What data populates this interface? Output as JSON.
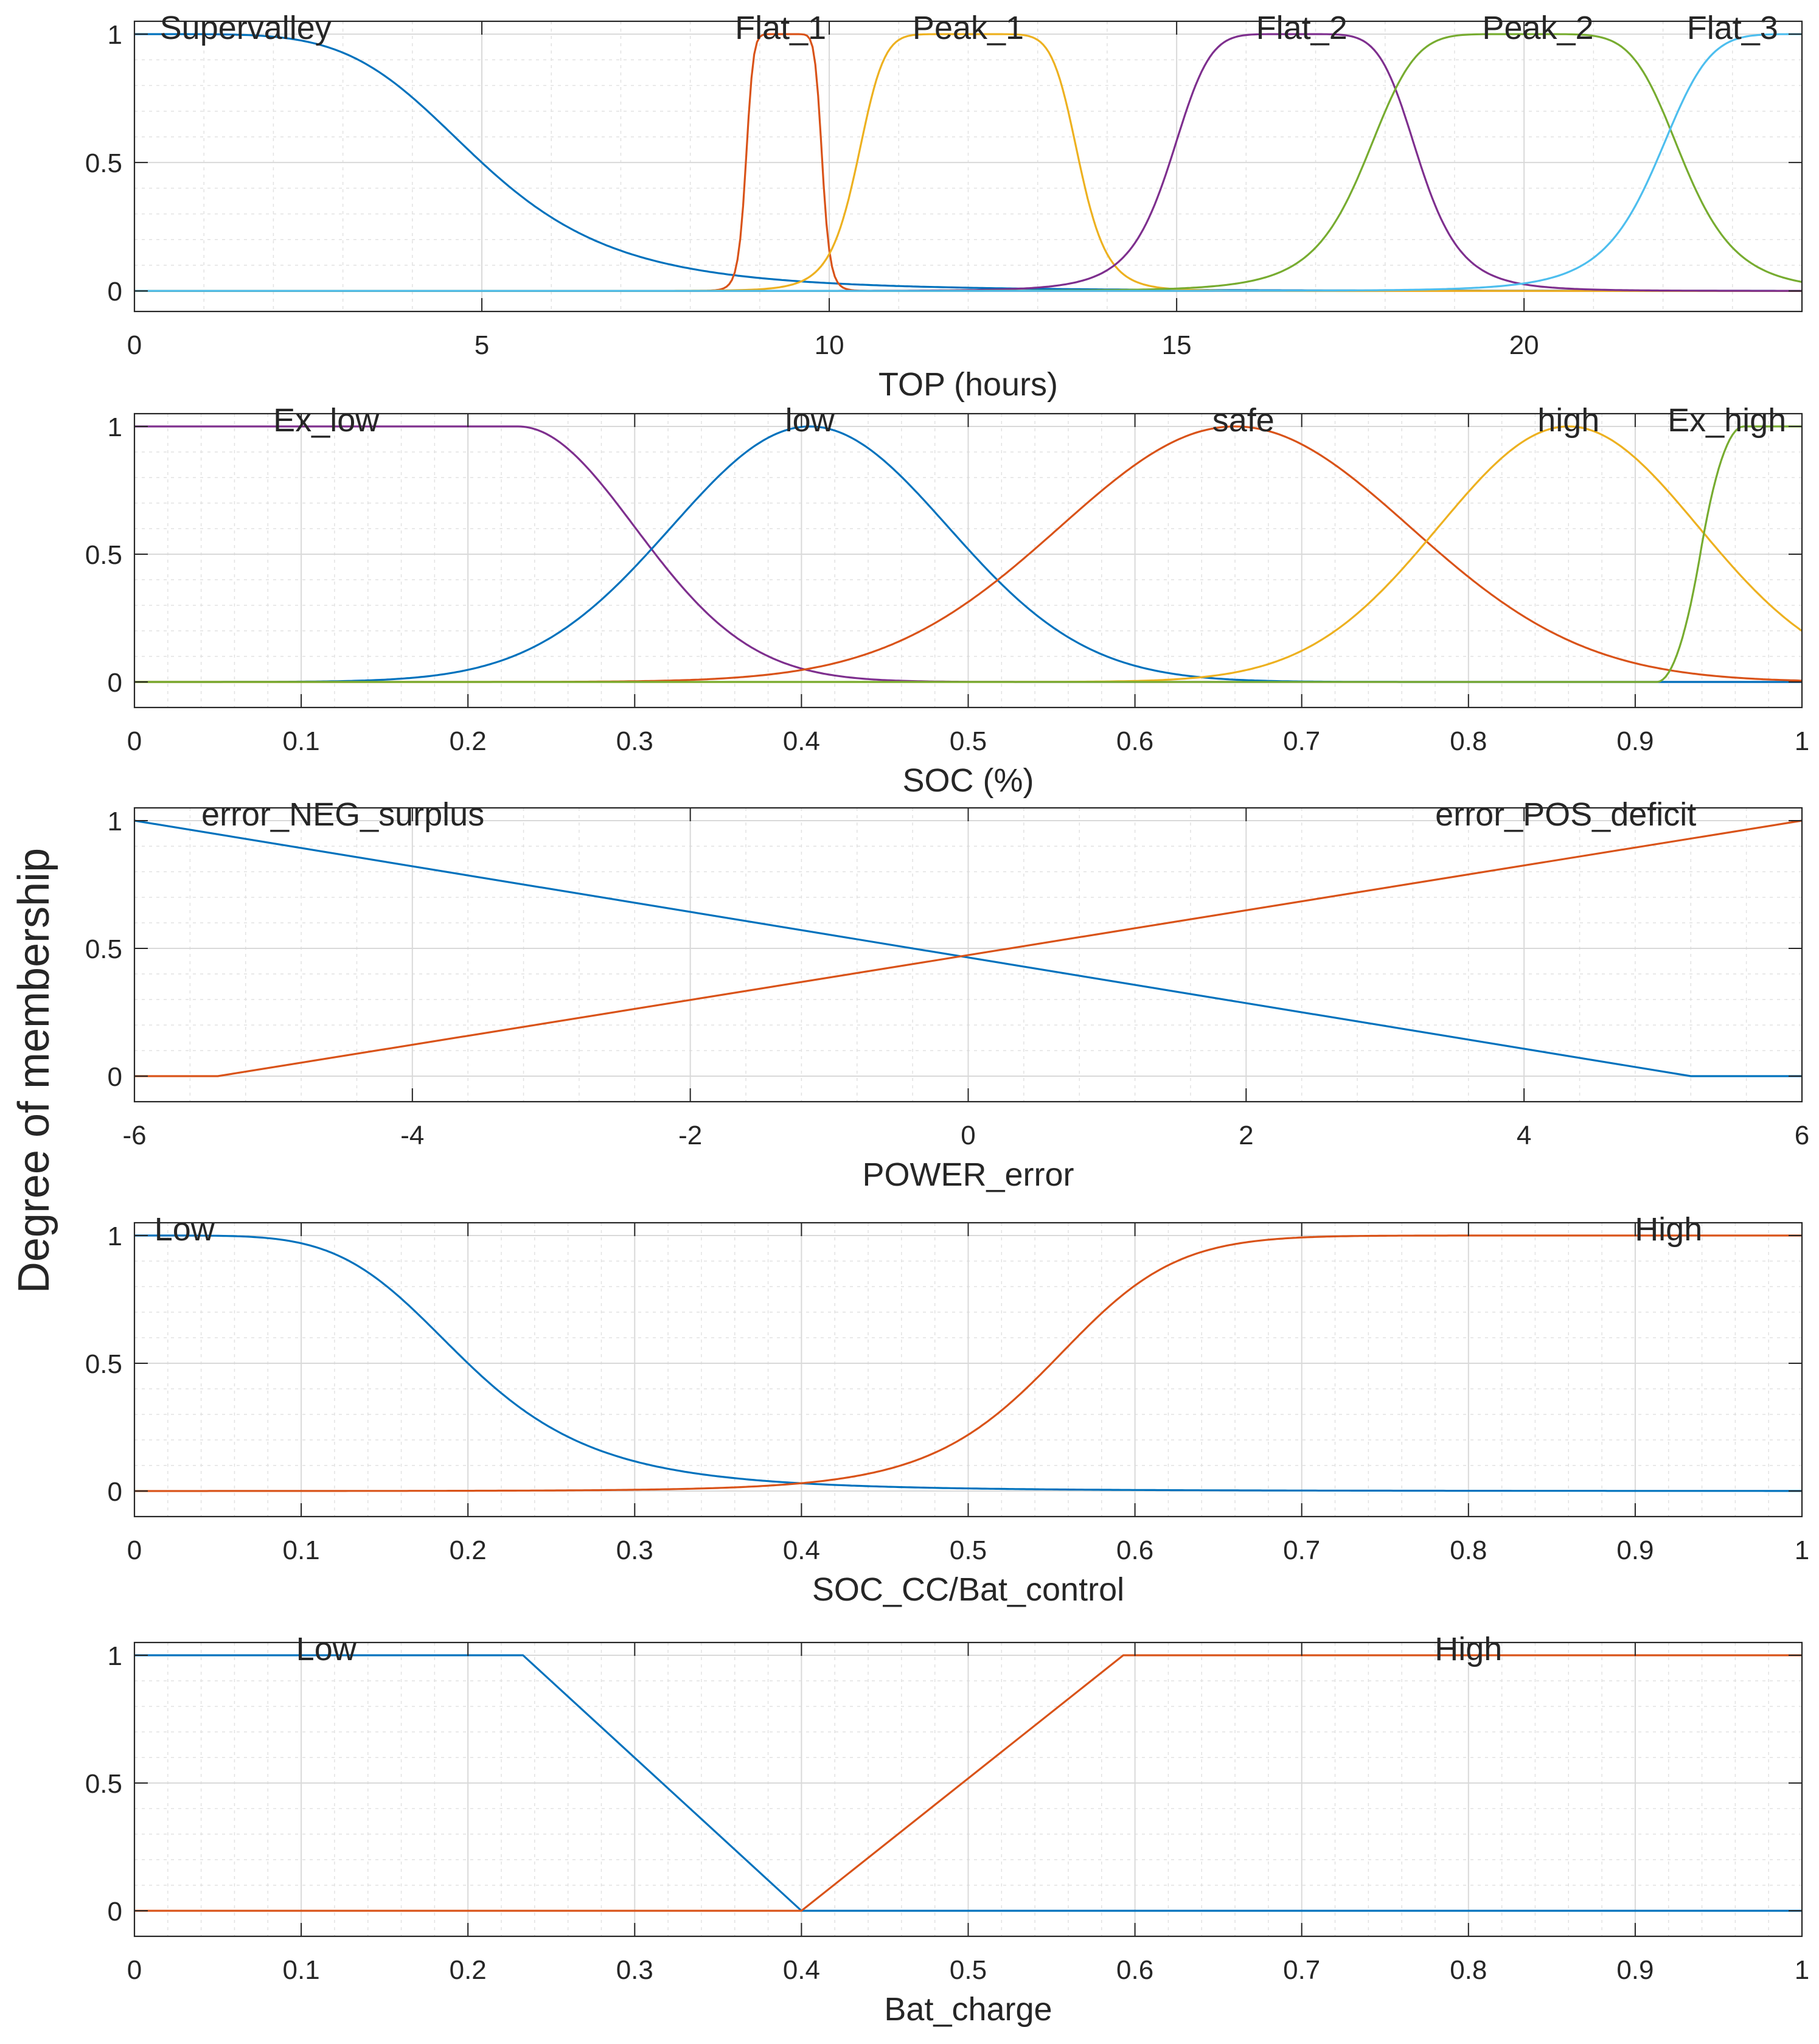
{
  "figure": {
    "ylabel": "Degree of membership"
  },
  "colors": [
    "#0072BD",
    "#D95319",
    "#EDB120",
    "#7E2F8E",
    "#77AC30",
    "#4DBEEE"
  ],
  "chart_data": [
    {
      "type": "line",
      "xlabel": "TOP (hours)",
      "xlim": [
        0,
        24
      ],
      "ylim": [
        -0.08,
        1.05
      ],
      "xticks": [
        0,
        5,
        10,
        15,
        20
      ],
      "xtick_labels": [
        "0",
        "5",
        "10",
        "15",
        "20"
      ],
      "yticks": [
        0,
        0.5,
        1
      ],
      "ytick_labels": [
        "0",
        "0.5",
        "1"
      ],
      "series": [
        {
          "name": "Supervalley",
          "color": "#0072BD",
          "mf": {
            "kind": "gbell",
            "a": 5,
            "b": 2.5,
            "c": 0
          },
          "label_x": 1.6
        },
        {
          "name": "Flat_1",
          "color": "#D95319",
          "mf": {
            "kind": "gbell",
            "a": 0.55,
            "b": 5,
            "c": 9.35
          },
          "label_x": 9.3
        },
        {
          "name": "Peak_1",
          "color": "#EDB120",
          "mf": {
            "kind": "gbell",
            "a": 1.6,
            "b": 4,
            "c": 12
          },
          "label_x": 12.0
        },
        {
          "name": "Flat_2",
          "color": "#7E2F8E",
          "mf": {
            "kind": "gbell",
            "a": 1.8,
            "b": 3,
            "c": 16.7
          },
          "label_x": 16.8
        },
        {
          "name": "Peak_2",
          "color": "#77AC30",
          "mf": {
            "kind": "gbell",
            "a": 2.3,
            "b": 3,
            "c": 20
          },
          "label_x": 20.2
        },
        {
          "name": "Flat_3",
          "color": "#4DBEEE",
          "mf": {
            "kind": "gbell",
            "a": 2.4,
            "b": 3,
            "c": 24.3
          },
          "label_x": 23.0
        }
      ]
    },
    {
      "type": "line",
      "xlabel": "SOC (%)",
      "xlim": [
        0,
        1
      ],
      "ylim": [
        -0.1,
        1.05
      ],
      "xticks": [
        0,
        0.1,
        0.2,
        0.3,
        0.4,
        0.5,
        0.6,
        0.7,
        0.8,
        0.9,
        1
      ],
      "xtick_labels": [
        "0",
        "0.1",
        "0.2",
        "0.3",
        "0.4",
        "0.5",
        "0.6",
        "0.7",
        "0.8",
        "0.9",
        "1"
      ],
      "yticks": [
        0,
        0.5,
        1
      ],
      "ytick_labels": [
        "0",
        "0.5",
        "1"
      ],
      "series": [
        {
          "name": "Ex_low",
          "color": "#7E2F8E",
          "mf": {
            "kind": "z",
            "p": 0.23,
            "s": 0.07
          },
          "label_x": 0.115
        },
        {
          "name": "low",
          "color": "#0072BD",
          "mf": {
            "kind": "gauss",
            "c": 0.405,
            "s": 0.083
          },
          "label_x": 0.405
        },
        {
          "name": "safe",
          "color": "#D95319",
          "mf": {
            "kind": "gauss",
            "c": 0.66,
            "s": 0.105
          },
          "label_x": 0.665
        },
        {
          "name": "high",
          "color": "#EDB120",
          "mf": {
            "kind": "gauss",
            "c": 0.86,
            "s": 0.078
          },
          "label_x": 0.86
        },
        {
          "name": "Ex_high",
          "color": "#77AC30",
          "mf": {
            "kind": "s",
            "a": 0.913,
            "b": 0.965
          },
          "label_x": 0.955
        }
      ]
    },
    {
      "type": "line",
      "xlabel": "POWER_error",
      "xlim": [
        -6,
        6
      ],
      "ylim": [
        -0.1,
        1.05
      ],
      "xticks": [
        -6,
        -4,
        -2,
        0,
        2,
        4,
        6
      ],
      "xtick_labels": [
        "-6",
        "-4",
        "-2",
        "0",
        "2",
        "4",
        "6"
      ],
      "yticks": [
        0,
        0.5,
        1
      ],
      "ytick_labels": [
        "0",
        "0.5",
        "1"
      ],
      "series": [
        {
          "name": "error_NEG_surplus",
          "color": "#0072BD",
          "mf": {
            "kind": "poly",
            "pts": [
              [
                -6,
                1
              ],
              [
                5.2,
                0
              ],
              [
                6,
                0
              ]
            ]
          },
          "label_x": -4.5
        },
        {
          "name": "error_POS_deficit",
          "color": "#D95319",
          "mf": {
            "kind": "poly",
            "pts": [
              [
                -6,
                0
              ],
              [
                -5.4,
                0
              ],
              [
                6,
                1
              ]
            ]
          },
          "label_x": 4.3
        }
      ]
    },
    {
      "type": "line",
      "xlabel": "SOC_CC/Bat_control",
      "xlim": [
        0,
        1
      ],
      "ylim": [
        -0.1,
        1.05
      ],
      "xticks": [
        0,
        0.1,
        0.2,
        0.3,
        0.4,
        0.5,
        0.6,
        0.7,
        0.8,
        0.9,
        1
      ],
      "xtick_labels": [
        "0",
        "0.1",
        "0.2",
        "0.3",
        "0.4",
        "0.5",
        "0.6",
        "0.7",
        "0.8",
        "0.9",
        "1"
      ],
      "yticks": [
        0,
        0.5,
        1
      ],
      "ytick_labels": [
        "0",
        "0.5",
        "1"
      ],
      "series": [
        {
          "name": "Low",
          "color": "#0072BD",
          "mf": {
            "kind": "gbell",
            "a": 0.2,
            "b": 2.5,
            "c": 0
          },
          "label_x": 0.03
        },
        {
          "name": "High",
          "color": "#D95319",
          "mf": {
            "kind": "gbell",
            "a": 0.45,
            "b": 6,
            "c": 1
          },
          "label_x": 0.92
        }
      ]
    },
    {
      "type": "line",
      "xlabel": "Bat_charge",
      "xlim": [
        0,
        1
      ],
      "ylim": [
        -0.1,
        1.05
      ],
      "xticks": [
        0,
        0.1,
        0.2,
        0.3,
        0.4,
        0.5,
        0.6,
        0.7,
        0.8,
        0.9,
        1
      ],
      "xtick_labels": [
        "0",
        "0.1",
        "0.2",
        "0.3",
        "0.4",
        "0.5",
        "0.6",
        "0.7",
        "0.8",
        "0.9",
        "1"
      ],
      "yticks": [
        0,
        0.5,
        1
      ],
      "ytick_labels": [
        "0",
        "0.5",
        "1"
      ],
      "series": [
        {
          "name": "Low",
          "color": "#0072BD",
          "mf": {
            "kind": "poly",
            "pts": [
              [
                0,
                1
              ],
              [
                0.233,
                1
              ],
              [
                0.4,
                0
              ],
              [
                1,
                0
              ]
            ]
          },
          "label_x": 0.115
        },
        {
          "name": "High",
          "color": "#D95319",
          "mf": {
            "kind": "poly",
            "pts": [
              [
                0,
                0
              ],
              [
                0.4,
                0
              ],
              [
                0.593,
                1
              ],
              [
                1,
                1
              ]
            ]
          },
          "label_x": 0.8
        }
      ]
    }
  ]
}
